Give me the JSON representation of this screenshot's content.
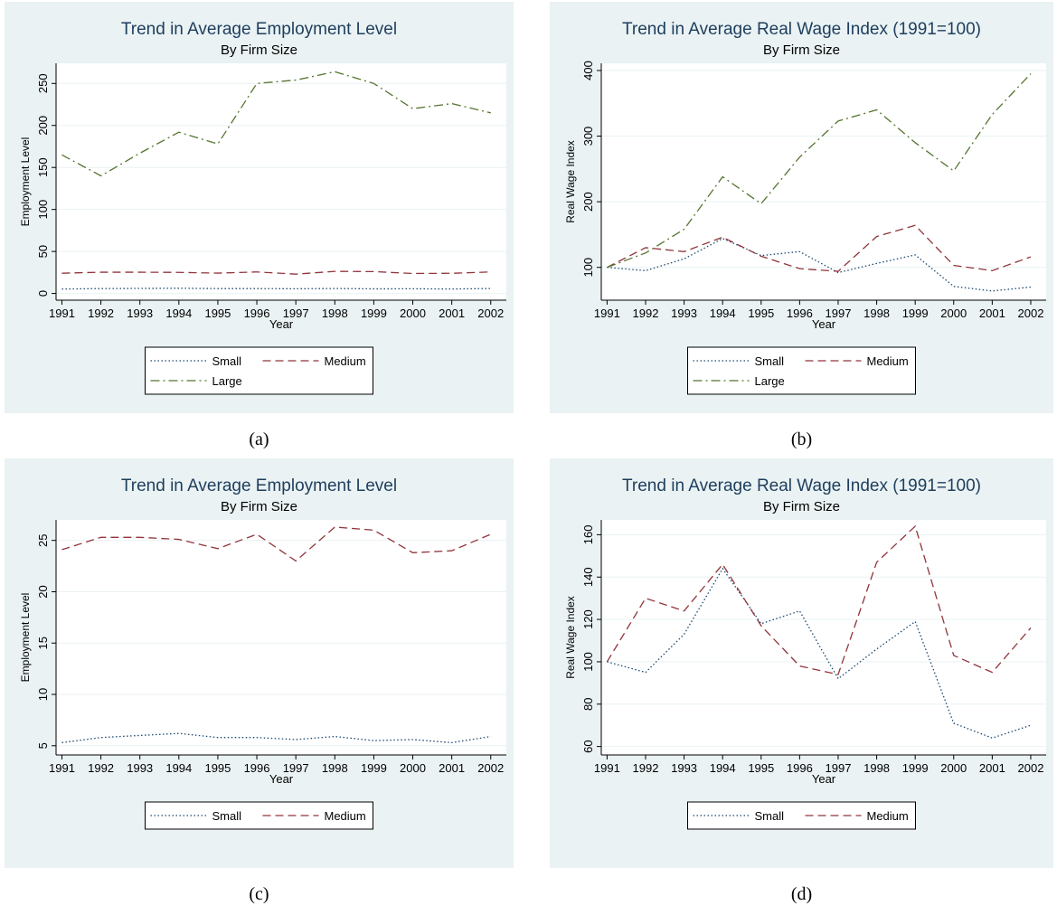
{
  "chart_data": [
    {
      "type": "line",
      "title": "Trend in Average Employment Level",
      "subtitle": "By Firm Size",
      "xlabel": "Year",
      "ylabel": "Employment Level",
      "caption": "(a)",
      "x": [
        1991,
        1992,
        1993,
        1994,
        1995,
        1996,
        1997,
        1998,
        1999,
        2000,
        2001,
        2002
      ],
      "xlim": [
        1990.85,
        2002.4
      ],
      "xticks": [
        1991,
        1992,
        1993,
        1994,
        1995,
        1996,
        1997,
        1998,
        1999,
        2000,
        2001,
        2002
      ],
      "ylim": [
        -8,
        274
      ],
      "yticks": [
        0,
        50,
        100,
        150,
        200,
        250
      ],
      "grid": true,
      "legend": "bottom",
      "series": [
        {
          "name": "Small",
          "color": "#1a476f",
          "dash": "dotted",
          "values": [
            5.3,
            5.8,
            6.0,
            6.2,
            5.8,
            5.8,
            5.6,
            5.9,
            5.5,
            5.6,
            5.3,
            5.9
          ]
        },
        {
          "name": "Medium",
          "color": "#90353b",
          "dash": "dashed",
          "values": [
            24.1,
            25.3,
            25.3,
            25.1,
            24.2,
            25.6,
            23.0,
            26.3,
            26.0,
            23.8,
            24.0,
            25.6
          ]
        },
        {
          "name": "Large",
          "color": "#55752f",
          "dash": "dashdot",
          "values": [
            165,
            140,
            167,
            192,
            178,
            250,
            254,
            264,
            250,
            220,
            226,
            215
          ]
        }
      ]
    },
    {
      "type": "line",
      "title": "Trend in Average Real Wage Index (1991=100)",
      "subtitle": "By Firm Size",
      "xlabel": "Year",
      "ylabel": "Real Wage Index",
      "caption": "(b)",
      "x": [
        1991,
        1992,
        1993,
        1994,
        1995,
        1996,
        1997,
        1998,
        1999,
        2000,
        2001,
        2002
      ],
      "xlim": [
        1990.85,
        2002.4
      ],
      "xticks": [
        1991,
        1992,
        1993,
        1994,
        1995,
        1996,
        1997,
        1998,
        1999,
        2000,
        2001,
        2002
      ],
      "ylim": [
        50,
        411
      ],
      "yticks": [
        100,
        200,
        300,
        400
      ],
      "grid": true,
      "legend": "bottom",
      "series": [
        {
          "name": "Small",
          "color": "#1a476f",
          "dash": "dotted",
          "values": [
            100,
            95,
            113,
            144,
            118,
            124,
            92,
            106,
            119,
            71,
            64,
            70
          ]
        },
        {
          "name": "Medium",
          "color": "#90353b",
          "dash": "dashed",
          "values": [
            100,
            130,
            124,
            146,
            117,
            98,
            94,
            147,
            164,
            103,
            95,
            116
          ]
        },
        {
          "name": "Large",
          "color": "#55752f",
          "dash": "dashdot",
          "values": [
            100,
            122,
            158,
            238,
            197,
            268,
            323,
            340,
            290,
            247,
            333,
            395
          ]
        }
      ]
    },
    {
      "type": "line",
      "title": "Trend in Average Employment Level",
      "subtitle": "By Firm Size",
      "xlabel": "Year",
      "ylabel": "Employment Level",
      "caption": "(c)",
      "x": [
        1991,
        1992,
        1993,
        1994,
        1995,
        1996,
        1997,
        1998,
        1999,
        2000,
        2001,
        2002
      ],
      "xlim": [
        1990.85,
        2002.4
      ],
      "xticks": [
        1991,
        1992,
        1993,
        1994,
        1995,
        1996,
        1997,
        1998,
        1999,
        2000,
        2001,
        2002
      ],
      "ylim": [
        4.1,
        27
      ],
      "yticks": [
        5,
        10,
        15,
        20,
        25
      ],
      "grid": true,
      "legend": "bottom",
      "series": [
        {
          "name": "Small",
          "color": "#1a476f",
          "dash": "dotted",
          "values": [
            5.3,
            5.8,
            6.0,
            6.2,
            5.8,
            5.8,
            5.6,
            5.9,
            5.5,
            5.6,
            5.3,
            5.9
          ]
        },
        {
          "name": "Medium",
          "color": "#90353b",
          "dash": "dashed",
          "values": [
            24.1,
            25.3,
            25.3,
            25.1,
            24.2,
            25.6,
            23.0,
            26.3,
            26.0,
            23.8,
            24.0,
            25.6
          ]
        }
      ]
    },
    {
      "type": "line",
      "title": "Trend in Average Real Wage Index (1991=100)",
      "subtitle": "By Firm Size",
      "xlabel": "Year",
      "ylabel": "Real Wage Index",
      "caption": "(d)",
      "x": [
        1991,
        1992,
        1993,
        1994,
        1995,
        1996,
        1997,
        1998,
        1999,
        2000,
        2001,
        2002
      ],
      "xlim": [
        1990.85,
        2002.4
      ],
      "xticks": [
        1991,
        1992,
        1993,
        1994,
        1995,
        1996,
        1997,
        1998,
        1999,
        2000,
        2001,
        2002
      ],
      "ylim": [
        56,
        167
      ],
      "yticks": [
        60,
        80,
        100,
        120,
        140,
        160
      ],
      "grid": true,
      "legend": "bottom",
      "series": [
        {
          "name": "Small",
          "color": "#1a476f",
          "dash": "dotted",
          "values": [
            100,
            95,
            113,
            144,
            118,
            124,
            92,
            106,
            119,
            71,
            64,
            70
          ]
        },
        {
          "name": "Medium",
          "color": "#90353b",
          "dash": "dashed",
          "values": [
            100,
            130,
            124,
            146,
            117,
            98,
            94,
            147,
            164,
            103,
            95,
            116
          ]
        }
      ]
    }
  ]
}
